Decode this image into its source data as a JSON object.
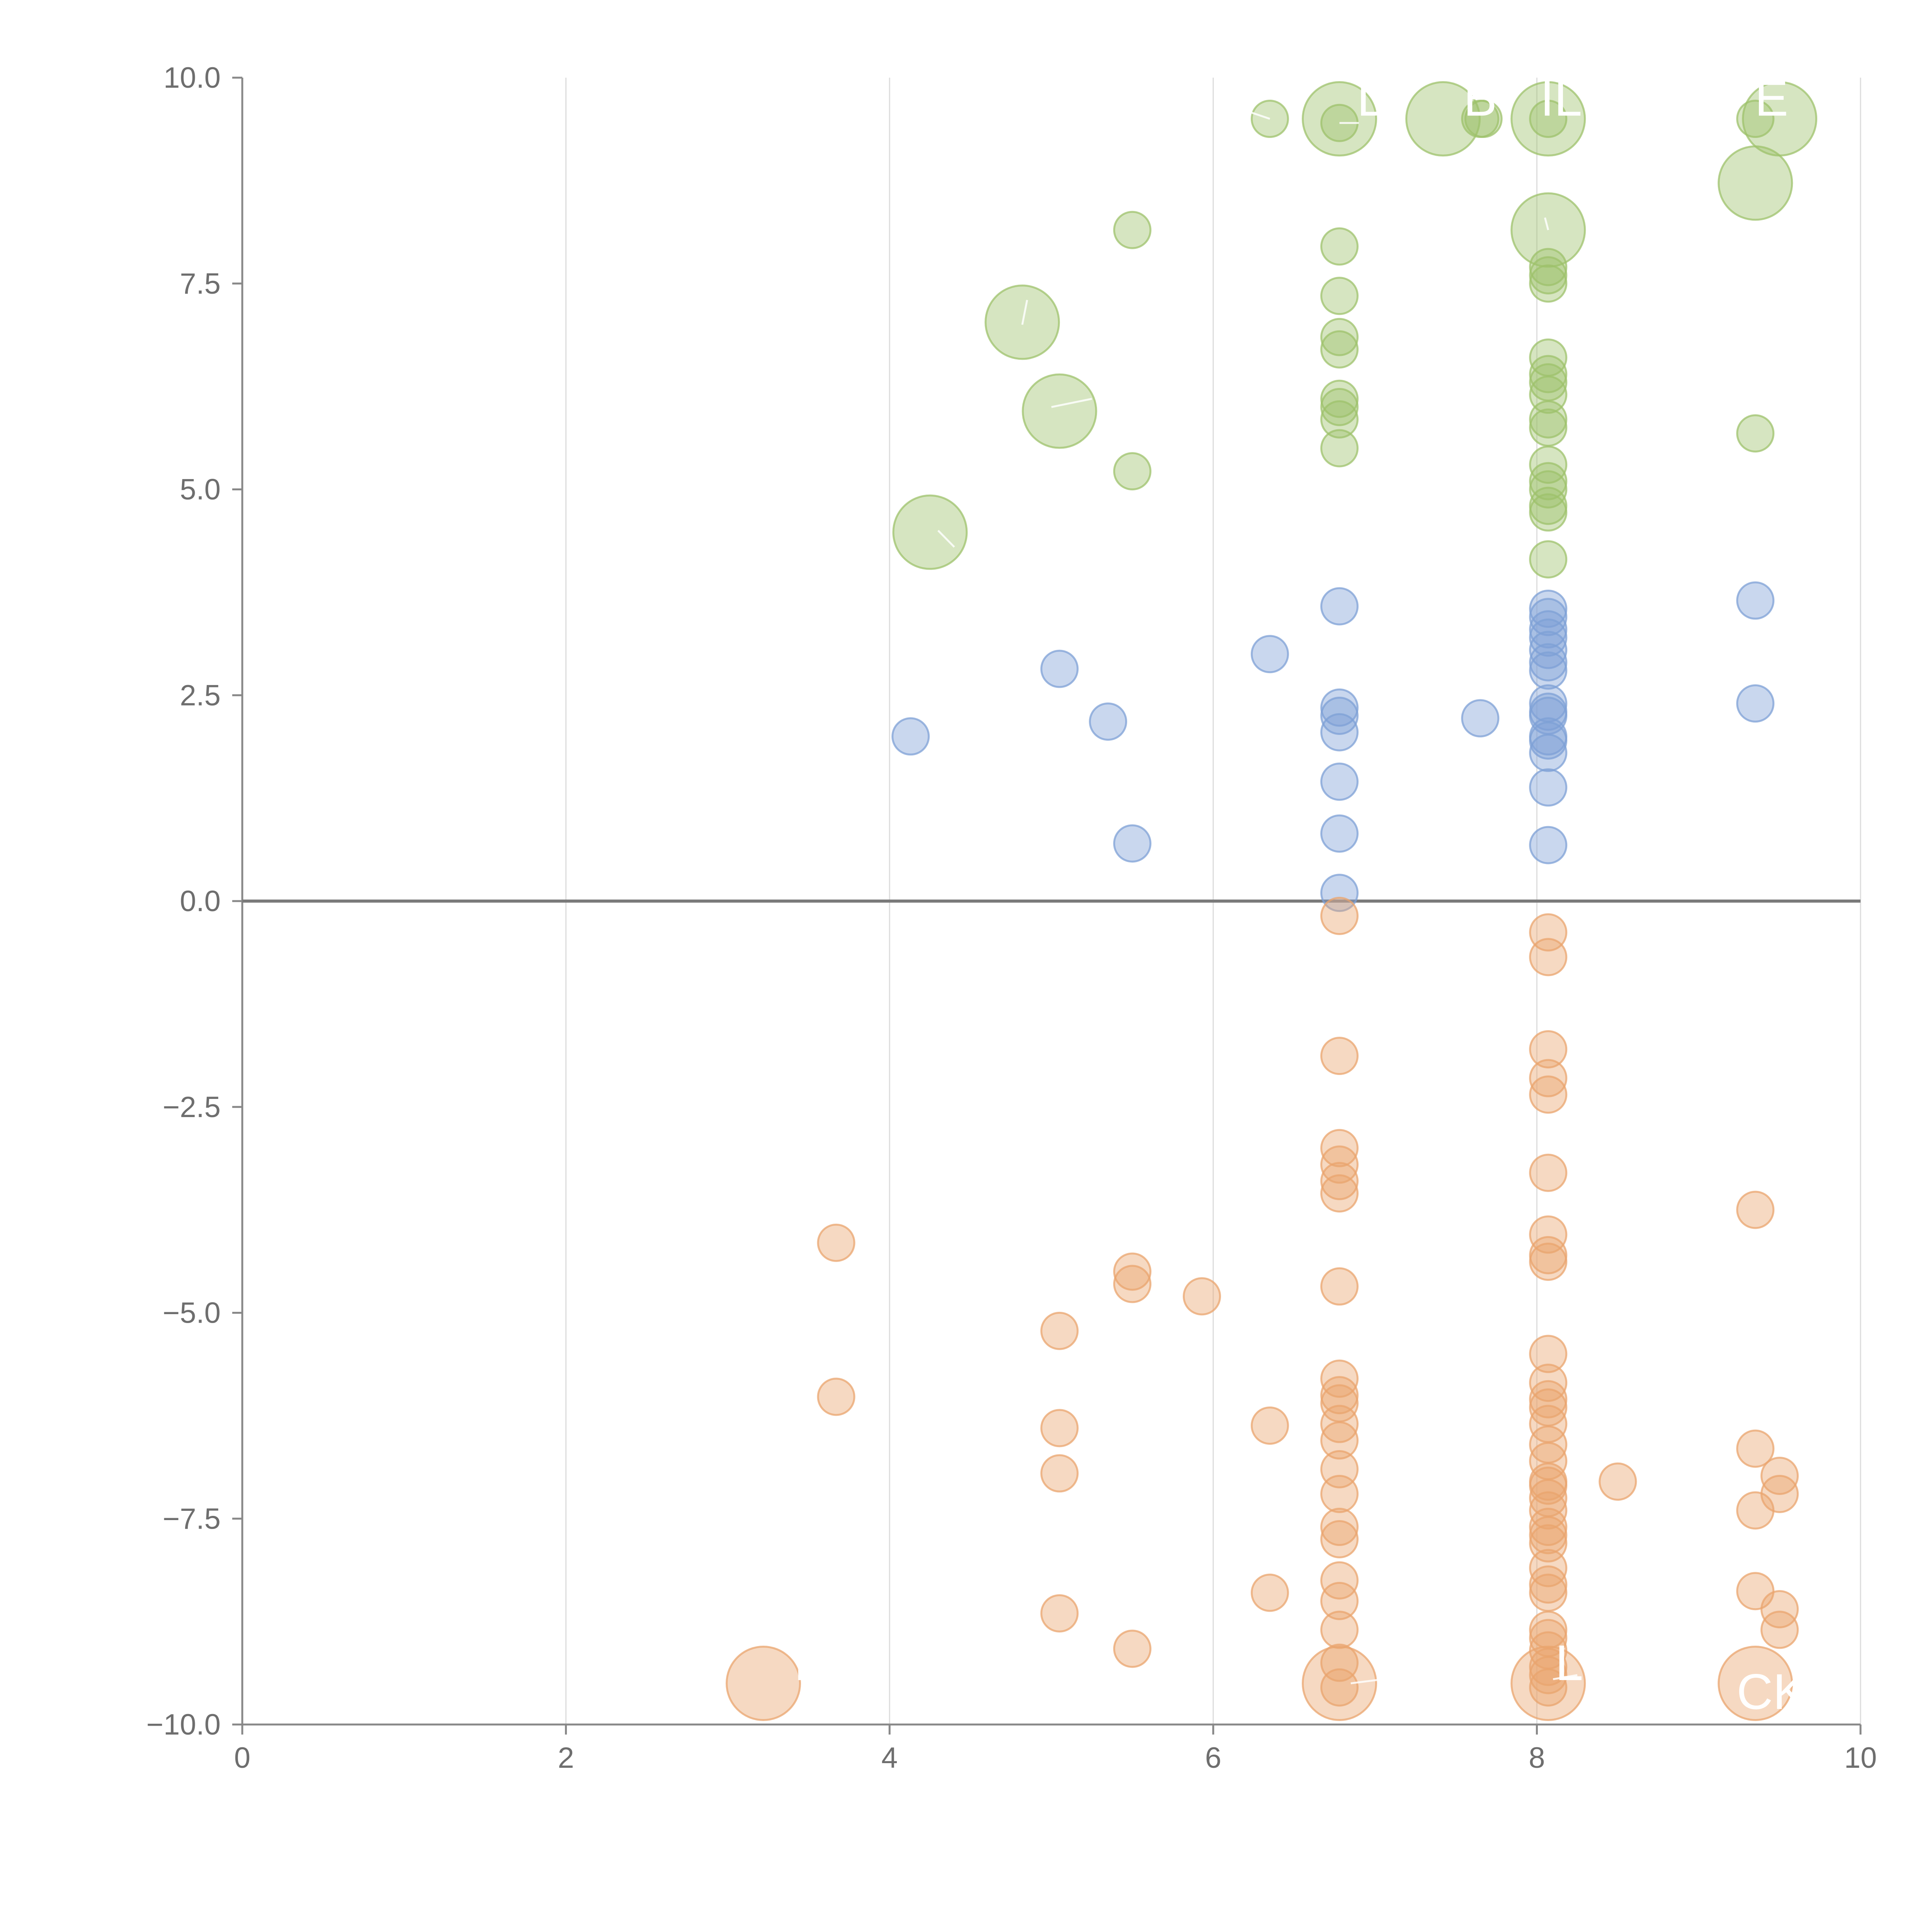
{
  "chart_data": {
    "type": "scatter",
    "title": "",
    "xlabel": "",
    "ylabel": "",
    "xlim": [
      0,
      10
    ],
    "ylim": [
      -10,
      10
    ],
    "x_ticks": [
      0,
      2,
      4,
      6,
      8,
      10
    ],
    "x_tick_labels": [
      "0",
      "2",
      "4",
      "6",
      "8",
      "10"
    ],
    "y_ticks": [
      10,
      7.5,
      5,
      2.5,
      0,
      -2.5,
      -5,
      -7.5,
      -10
    ],
    "y_tick_labels": [
      "10.0",
      "7.5",
      "5.0",
      "2.5",
      "0.0",
      "−2.5",
      "−5.0",
      "−7.5",
      "−10.0"
    ],
    "grid": "vertical",
    "legend": "none",
    "reference_line_y": 0,
    "series": [
      {
        "name": "green",
        "color": "#9dc16b",
        "points": [
          [
            6.35,
            9.5,
            1
          ],
          [
            6.78,
            9.45,
            1
          ],
          [
            7.65,
            9.5,
            1
          ],
          [
            7.67,
            9.5,
            1
          ],
          [
            8.07,
            9.5,
            1
          ],
          [
            9.35,
            9.5,
            1
          ],
          [
            5.5,
            8.15,
            1
          ],
          [
            6.78,
            7.95,
            1
          ],
          [
            6.78,
            7.35,
            1
          ],
          [
            6.78,
            6.85,
            1
          ],
          [
            6.78,
            6.7,
            1
          ],
          [
            6.78,
            6.1,
            1
          ],
          [
            6.78,
            6.0,
            1
          ],
          [
            6.78,
            5.85,
            1
          ],
          [
            6.78,
            5.5,
            1
          ],
          [
            5.5,
            5.22,
            1
          ],
          [
            8.07,
            7.7,
            1
          ],
          [
            8.07,
            7.6,
            1
          ],
          [
            8.07,
            7.5,
            1
          ],
          [
            8.07,
            6.6,
            1
          ],
          [
            8.07,
            6.4,
            1
          ],
          [
            8.07,
            6.3,
            1
          ],
          [
            8.07,
            6.15,
            1
          ],
          [
            8.07,
            5.85,
            1
          ],
          [
            8.07,
            5.75,
            1
          ],
          [
            8.07,
            5.3,
            1
          ],
          [
            8.07,
            5.1,
            1
          ],
          [
            8.07,
            5.0,
            1
          ],
          [
            8.07,
            4.8,
            1
          ],
          [
            8.07,
            4.72,
            1
          ],
          [
            8.07,
            4.15,
            1
          ],
          [
            9.35,
            5.68,
            1
          ],
          [
            6.78,
            9.5,
            2
          ],
          [
            7.42,
            9.5,
            2
          ],
          [
            8.07,
            9.5,
            2
          ],
          [
            9.5,
            9.5,
            2
          ],
          [
            9.35,
            8.72,
            2
          ],
          [
            8.07,
            8.15,
            2
          ],
          [
            4.82,
            7.03,
            2
          ],
          [
            5.05,
            5.95,
            2
          ],
          [
            4.25,
            4.48,
            2
          ]
        ]
      },
      {
        "name": "blue",
        "color": "#7ea0d6",
        "points": [
          [
            6.78,
            3.58,
            1
          ],
          [
            6.35,
            3.0,
            1
          ],
          [
            5.05,
            2.82,
            1
          ],
          [
            5.35,
            2.18,
            1
          ],
          [
            4.13,
            2.0,
            1
          ],
          [
            7.65,
            2.22,
            1
          ],
          [
            6.78,
            2.35,
            1
          ],
          [
            6.78,
            2.25,
            1
          ],
          [
            6.78,
            2.05,
            1
          ],
          [
            6.78,
            1.45,
            1
          ],
          [
            6.78,
            0.82,
            1
          ],
          [
            6.78,
            0.1,
            1
          ],
          [
            5.5,
            0.7,
            1
          ],
          [
            8.07,
            3.55,
            1
          ],
          [
            8.07,
            3.45,
            1
          ],
          [
            8.07,
            3.3,
            1
          ],
          [
            8.07,
            3.2,
            1
          ],
          [
            8.07,
            3.05,
            1
          ],
          [
            8.07,
            2.9,
            1
          ],
          [
            8.07,
            2.8,
            1
          ],
          [
            8.07,
            2.4,
            1
          ],
          [
            8.07,
            2.3,
            1
          ],
          [
            8.07,
            2.25,
            1
          ],
          [
            8.07,
            2.0,
            1
          ],
          [
            8.07,
            1.95,
            1
          ],
          [
            8.07,
            1.8,
            1
          ],
          [
            8.07,
            1.38,
            1
          ],
          [
            8.07,
            0.68,
            1
          ],
          [
            9.35,
            3.65,
            1
          ],
          [
            9.35,
            2.4,
            1
          ]
        ]
      },
      {
        "name": "orange",
        "color": "#e9a46e",
        "points": [
          [
            6.78,
            -0.18,
            1
          ],
          [
            6.78,
            -1.88,
            1
          ],
          [
            6.78,
            -3.0,
            1
          ],
          [
            6.78,
            -3.2,
            1
          ],
          [
            6.78,
            -3.4,
            1
          ],
          [
            6.78,
            -3.55,
            1
          ],
          [
            6.78,
            -4.68,
            1
          ],
          [
            6.78,
            -5.8,
            1
          ],
          [
            6.78,
            -6.0,
            1
          ],
          [
            6.78,
            -6.1,
            1
          ],
          [
            6.78,
            -6.35,
            1
          ],
          [
            6.78,
            -6.55,
            1
          ],
          [
            6.78,
            -6.9,
            1
          ],
          [
            6.78,
            -7.2,
            1
          ],
          [
            6.78,
            -7.6,
            1
          ],
          [
            6.78,
            -7.75,
            1
          ],
          [
            6.78,
            -8.25,
            1
          ],
          [
            6.78,
            -8.5,
            1
          ],
          [
            6.78,
            -8.85,
            1
          ],
          [
            6.78,
            -9.25,
            1
          ],
          [
            6.78,
            -9.55,
            1
          ],
          [
            8.07,
            -0.38,
            1
          ],
          [
            8.07,
            -0.68,
            1
          ],
          [
            8.07,
            -1.8,
            1
          ],
          [
            8.07,
            -2.15,
            1
          ],
          [
            8.07,
            -2.35,
            1
          ],
          [
            8.07,
            -3.3,
            1
          ],
          [
            8.07,
            -4.05,
            1
          ],
          [
            8.07,
            -4.3,
            1
          ],
          [
            8.07,
            -4.38,
            1
          ],
          [
            8.07,
            -5.5,
            1
          ],
          [
            8.07,
            -5.85,
            1
          ],
          [
            8.07,
            -6.05,
            1
          ],
          [
            8.07,
            -6.15,
            1
          ],
          [
            8.07,
            -6.35,
            1
          ],
          [
            8.07,
            -6.6,
            1
          ],
          [
            8.07,
            -6.8,
            1
          ],
          [
            8.07,
            -7.05,
            1
          ],
          [
            8.07,
            -7.1,
            1
          ],
          [
            8.07,
            -7.25,
            1
          ],
          [
            8.07,
            -7.4,
            1
          ],
          [
            8.07,
            -7.6,
            1
          ],
          [
            8.07,
            -7.7,
            1
          ],
          [
            8.07,
            -7.8,
            1
          ],
          [
            8.07,
            -8.1,
            1
          ],
          [
            8.07,
            -8.3,
            1
          ],
          [
            8.07,
            -8.4,
            1
          ],
          [
            8.07,
            -8.85,
            1
          ],
          [
            8.07,
            -8.95,
            1
          ],
          [
            8.07,
            -9.1,
            1
          ],
          [
            8.07,
            -9.3,
            1
          ],
          [
            8.07,
            -9.4,
            1
          ],
          [
            8.07,
            -9.55,
            1
          ],
          [
            3.67,
            -4.15,
            1
          ],
          [
            3.67,
            -6.02,
            1
          ],
          [
            5.5,
            -4.5,
            1
          ],
          [
            5.5,
            -4.65,
            1
          ],
          [
            5.93,
            -4.8,
            1
          ],
          [
            5.05,
            -5.22,
            1
          ],
          [
            5.05,
            -6.4,
            1
          ],
          [
            5.05,
            -6.95,
            1
          ],
          [
            5.05,
            -8.65,
            1
          ],
          [
            5.5,
            -9.08,
            1
          ],
          [
            6.35,
            -6.37,
            1
          ],
          [
            6.35,
            -8.4,
            1
          ],
          [
            8.5,
            -7.05,
            1
          ],
          [
            9.35,
            -3.75,
            1
          ],
          [
            9.35,
            -6.65,
            1
          ],
          [
            9.35,
            -7.4,
            1
          ],
          [
            9.35,
            -8.38,
            1
          ],
          [
            9.5,
            -6.98,
            1
          ],
          [
            9.5,
            -7.2,
            1
          ],
          [
            9.5,
            -8.6,
            1
          ],
          [
            9.5,
            -8.85,
            1
          ],
          [
            3.22,
            -9.5,
            2
          ],
          [
            6.78,
            -9.5,
            2
          ],
          [
            8.07,
            -9.5,
            2
          ],
          [
            9.35,
            -9.5,
            2
          ]
        ]
      }
    ],
    "annotations": [
      {
        "text": "D",
        "x": 7.0,
        "y": 9.75
      },
      {
        "text": "B",
        "x": 7.65,
        "y": 9.75
      },
      {
        "text": "IL",
        "x": 8.15,
        "y": 9.75
      },
      {
        "text": "E",
        "x": 9.45,
        "y": 9.75
      },
      {
        "text": "I",
        "x": 3.45,
        "y": -9.25
      },
      {
        "text": "L",
        "x": 8.2,
        "y": -9.25
      },
      {
        "text": "CK",
        "x": 9.45,
        "y": -9.6
      }
    ],
    "callout_lines": [
      [
        6.2,
        9.6,
        6.35,
        9.5
      ],
      [
        6.9,
        9.45,
        6.78,
        9.45
      ],
      [
        8.05,
        8.3,
        8.07,
        8.15
      ],
      [
        4.82,
        7.0,
        4.85,
        7.3
      ],
      [
        5.0,
        6.0,
        5.25,
        6.1
      ],
      [
        4.3,
        4.5,
        4.4,
        4.3
      ],
      [
        6.85,
        -9.5,
        7.05,
        -9.45
      ],
      [
        8.1,
        -9.45,
        8.25,
        -9.4
      ]
    ]
  }
}
